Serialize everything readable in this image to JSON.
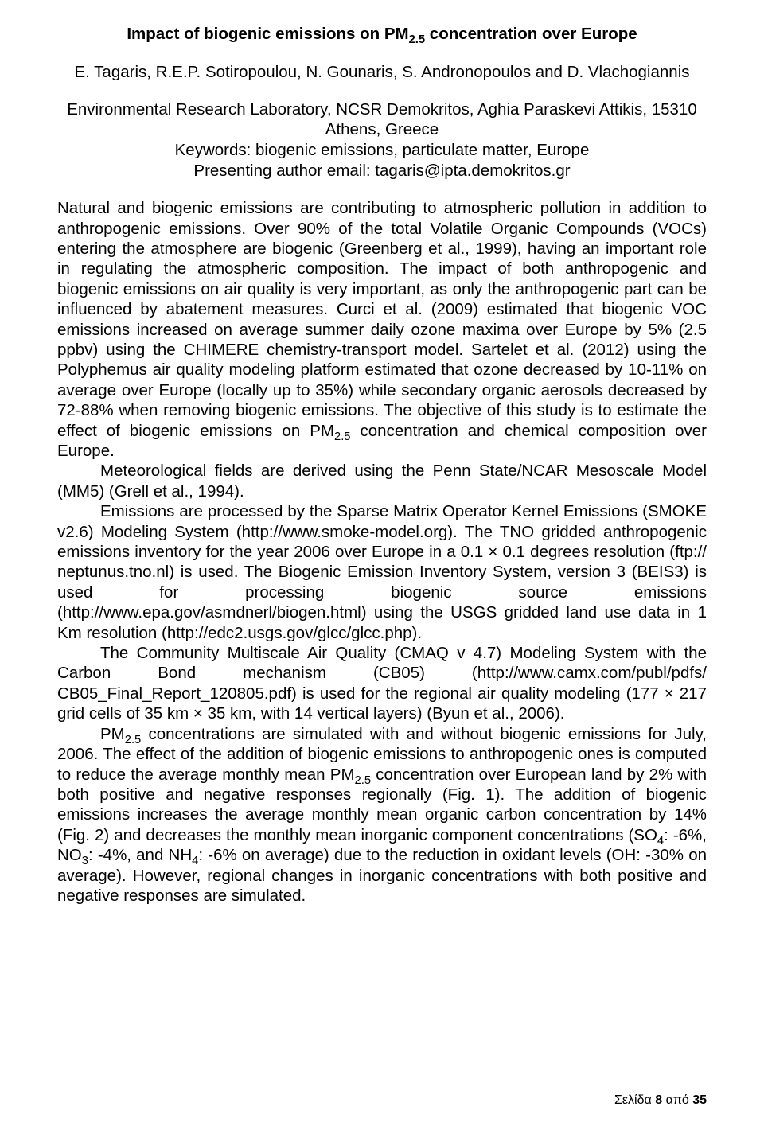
{
  "title_pre": "Impact of biogenic emissions on PM",
  "title_sub": "2.5",
  "title_post": " concentration over Europe",
  "authors": "E. Tagaris, R.E.P. Sotiropoulou, N. Gounaris, S. Andronopoulos and D. Vlachogiannis",
  "affil_line1": "Environmental Research Laboratory, NCSR Demokritos, Aghia Paraskevi Attikis, 15310 Athens, Greece",
  "affil_line2": "Keywords: biogenic emissions, particulate matter, Europe",
  "affil_line3": "Presenting author email: tagaris@ipta.demokritos.gr",
  "p1_a": "Natural and biogenic emissions are contributing to atmospheric pollution in addition to anthropogenic emissions. Over 90% of the total Volatile Organic Compounds (VOCs) entering the atmosphere are biogenic (Greenberg et al., 1999), having an important role in regulating the atmospheric composition. The impact of both anthropogenic and biogenic emissions on air quality is very important, as only the anthropogenic part can be influenced by abatement measures. Curci et al. (2009) estimated that biogenic VOC emissions increased on average summer daily ozone maxima over Europe by 5% (2.5 ppbv) using the CHIMERE chemistry-transport model. Sartelet et al. (2012) using the Polyphemus air quality modeling platform estimated that ozone decreased by 10-11% on average over Europe (locally up to 35%) while secondary organic aerosols decreased by 72-88% when removing biogenic emissions. The objective of this study is to estimate the effect of biogenic emissions on PM",
  "p1_sub": "2.5",
  "p1_b": " concentration and chemical composition over Europe.",
  "p2": "Meteorological fields are derived using the Penn State/NCAR Mesoscale Model (MM5) (Grell et al., 1994).",
  "p3": "Emissions are processed by the Sparse Matrix Operator Kernel Emissions (SMOKE v2.6) Modeling System (http://www.smoke-model.org). The TNO gridded anthropogenic emissions inventory for the year 2006 over Europe in a 0.1 × 0.1 degrees resolution (ftp:// neptunus.tno.nl) is used. The Biogenic Emission Inventory System, version 3 (BEIS3) is used for processing biogenic source emissions (http://www.epa.gov/asmdnerl/biogen.html) using the USGS gridded land use data in 1 Km resolution (http://edc2.usgs.gov/glcc/glcc.php).",
  "p4": "The Community Multiscale Air Quality (CMAQ v 4.7) Modeling System with the Carbon Bond mechanism (CB05) (http://www.camx.com/publ/pdfs/ CB05_Final_Report_120805.pdf) is used for the regional air quality modeling (177 × 217 grid cells of 35 km × 35 km, with 14 vertical layers) (Byun et al., 2006).",
  "p5_a": "PM",
  "p5_sub1": "2.5",
  "p5_b": " concentrations are simulated with and without biogenic emissions for July, 2006. The effect of the addition of biogenic emissions to anthropogenic ones is computed to reduce the average monthly mean PM",
  "p5_sub2": "2.5",
  "p5_c": " concentration over European land by 2% with both positive and negative responses regionally (Fig. 1). The addition of biogenic emissions increases the average monthly mean organic carbon concentration by 14% (Fig. 2) and decreases the monthly mean inorganic component concentrations (SO",
  "p5_sub3": "4",
  "p5_d": ": -6%, NO",
  "p5_sub4": "3",
  "p5_e": ": -4%, and NH",
  "p5_sub5": "4",
  "p5_f": ": -6% on average) due to the reduction in oxidant levels (OH: -30% on average). However, regional changes in inorganic concentrations with both positive and negative responses are simulated.",
  "footer_pre": "Σελίδα ",
  "footer_page": "8",
  "footer_mid": " από ",
  "footer_total": "35"
}
